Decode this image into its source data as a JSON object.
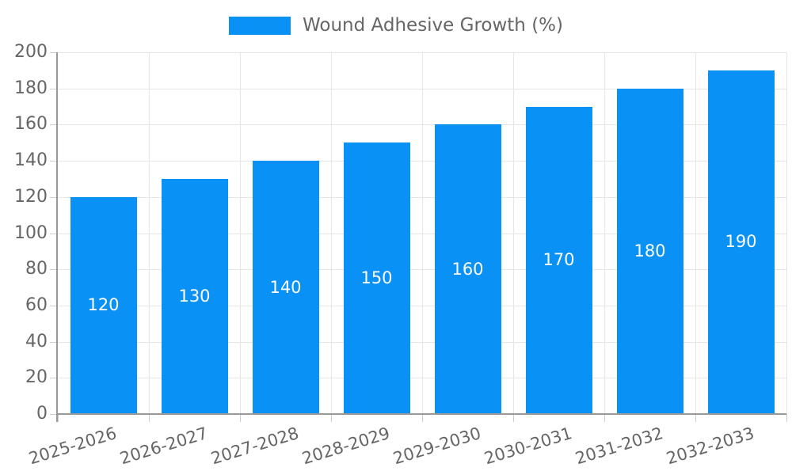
{
  "chart_data": {
    "type": "bar",
    "title": "",
    "legend_entries": [
      "Wound Adhesive Growth (%)"
    ],
    "legend_position": "top",
    "categories": [
      "2025-2026",
      "2026-2027",
      "2027-2028",
      "2028-2029",
      "2029-2030",
      "2030-2031",
      "2031-2032",
      "2032-2033"
    ],
    "values": [
      120,
      130,
      140,
      150,
      160,
      170,
      180,
      190
    ],
    "bar_labels": [
      "120",
      "130",
      "140",
      "150",
      "160",
      "170",
      "180",
      "190"
    ],
    "xlabel": "",
    "ylabel": "",
    "ylim": [
      0,
      200
    ],
    "ytick_step": 20,
    "ytick_labels": [
      "0",
      "20",
      "40",
      "60",
      "80",
      "100",
      "120",
      "140",
      "160",
      "180",
      "200"
    ],
    "grid": true,
    "colors": {
      "bar": "#0a91f5",
      "text": "#666666",
      "grid": "#e6e6e6",
      "axis": "#999999",
      "tick": "#cccccc",
      "bar_label": "#ffffff",
      "background": "#ffffff"
    }
  }
}
